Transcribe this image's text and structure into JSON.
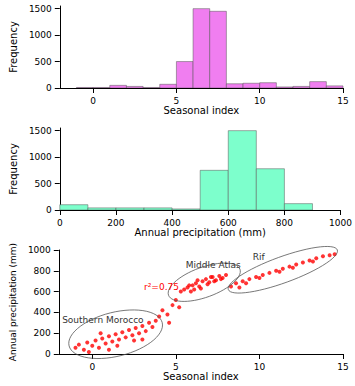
{
  "chart_data": [
    {
      "type": "histogram",
      "x_label": "Seasonal index",
      "y_label": "Frequency",
      "color": "#f07ef0",
      "bins": [
        -1,
        0,
        1,
        2,
        3,
        4,
        5,
        6,
        7,
        8,
        9,
        10,
        11,
        12,
        13,
        14,
        15
      ],
      "values": [
        10,
        10,
        50,
        30,
        10,
        70,
        500,
        1500,
        1450,
        80,
        90,
        100,
        20,
        30,
        120,
        40
      ],
      "xlim": [
        -2,
        15
      ],
      "xticks": [
        0,
        5,
        10,
        15
      ],
      "ylim": [
        0,
        1550
      ],
      "yticks": [
        0,
        500,
        1000,
        1500
      ]
    },
    {
      "type": "histogram",
      "x_label": "Annual precipitation (mm)",
      "y_label": "Frequency",
      "color": "#7dffcc",
      "bins": [
        0,
        100,
        200,
        300,
        400,
        500,
        600,
        700,
        800,
        900
      ],
      "values": [
        100,
        40,
        40,
        40,
        20,
        750,
        1500,
        780,
        120
      ],
      "xlim": [
        0,
        1000
      ],
      "xticks": [
        0,
        200,
        400,
        600,
        800,
        1000
      ],
      "ylim": [
        0,
        1550
      ],
      "yticks": [
        0,
        500,
        1000,
        1500
      ]
    },
    {
      "type": "scatter",
      "x_label": "Seasonal index",
      "y_label": "Annual precipitation (mm)",
      "color": "#ff0000",
      "x": [
        -1,
        -0.8,
        -0.5,
        -0.3,
        0,
        0.2,
        0.4,
        0.6,
        0.8,
        1,
        1.2,
        1.4,
        1.6,
        1.8,
        2,
        2.2,
        2.4,
        2.6,
        2.8,
        3,
        3.2,
        3.4,
        3.6,
        3.8,
        0.5,
        1.5,
        2.5,
        -0.2,
        3,
        1,
        4,
        4.2,
        4.5,
        4.8,
        5,
        4.6,
        5.2,
        5.3,
        5.5,
        5.7,
        5.9,
        6,
        6.2,
        6.4,
        6.6,
        6.8,
        7,
        7.2,
        7.4,
        7.6,
        7.8,
        8,
        6.1,
        6.5,
        6.9,
        7.3,
        7.7,
        5.8,
        6.3,
        7.1,
        8.3,
        8.6,
        9,
        9.4,
        9.8,
        10.2,
        10.6,
        11,
        11.4,
        11.8,
        12.2,
        12.6,
        13,
        13.4,
        13.8,
        14.2,
        14.5,
        9.2,
        10,
        11.2,
        12,
        13.2,
        8.8
      ],
      "values": [
        60,
        90,
        40,
        110,
        80,
        130,
        60,
        150,
        100,
        170,
        120,
        190,
        140,
        210,
        160,
        230,
        180,
        250,
        200,
        270,
        220,
        300,
        260,
        320,
        200,
        80,
        130,
        20,
        140,
        40,
        360,
        420,
        380,
        470,
        520,
        300,
        450,
        600,
        620,
        640,
        600,
        660,
        680,
        650,
        700,
        720,
        690,
        740,
        710,
        750,
        730,
        760,
        620,
        630,
        670,
        700,
        720,
        660,
        710,
        740,
        650,
        680,
        700,
        720,
        740,
        760,
        780,
        800,
        820,
        840,
        860,
        880,
        900,
        920,
        940,
        950,
        960,
        680,
        730,
        790,
        830,
        890,
        640
      ],
      "xlim": [
        -2,
        15
      ],
      "xticks": [
        0,
        5,
        10,
        15
      ],
      "ylim": [
        0,
        1000
      ],
      "yticks": [
        0,
        200,
        400,
        600,
        800,
        1000
      ],
      "annotations": [
        {
          "text": "Southern Morocco"
        },
        {
          "text": "Middle Atlas"
        },
        {
          "text": "Rif"
        },
        {
          "text": "r²=0.75",
          "color": "#ff0000"
        }
      ]
    }
  ]
}
